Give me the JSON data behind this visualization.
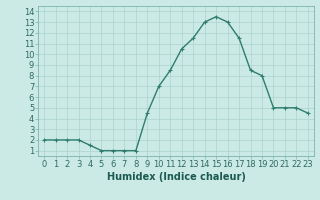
{
  "x": [
    0,
    1,
    2,
    3,
    4,
    5,
    6,
    7,
    8,
    9,
    10,
    11,
    12,
    13,
    14,
    15,
    16,
    17,
    18,
    19,
    20,
    21,
    22,
    23
  ],
  "y": [
    2,
    2,
    2,
    2,
    1.5,
    1,
    1,
    1,
    1,
    4.5,
    7,
    8.5,
    10.5,
    11.5,
    13,
    13.5,
    13,
    11.5,
    8.5,
    8,
    5,
    5,
    5,
    4.5
  ],
  "line_color": "#2e7d6e",
  "marker_color": "#2e7d6e",
  "bg_color": "#cceae5",
  "grid_color": "#aad4cc",
  "xlabel": "Humidex (Indice chaleur)",
  "xlim": [
    -0.5,
    23.5
  ],
  "ylim": [
    0.5,
    14.5
  ],
  "yticks": [
    1,
    2,
    3,
    4,
    5,
    6,
    7,
    8,
    9,
    10,
    11,
    12,
    13,
    14
  ],
  "xticks": [
    0,
    1,
    2,
    3,
    4,
    5,
    6,
    7,
    8,
    9,
    10,
    11,
    12,
    13,
    14,
    15,
    16,
    17,
    18,
    19,
    20,
    21,
    22,
    23
  ],
  "xlabel_fontsize": 7,
  "tick_fontsize": 6,
  "linewidth": 1.0,
  "markersize": 2.5
}
